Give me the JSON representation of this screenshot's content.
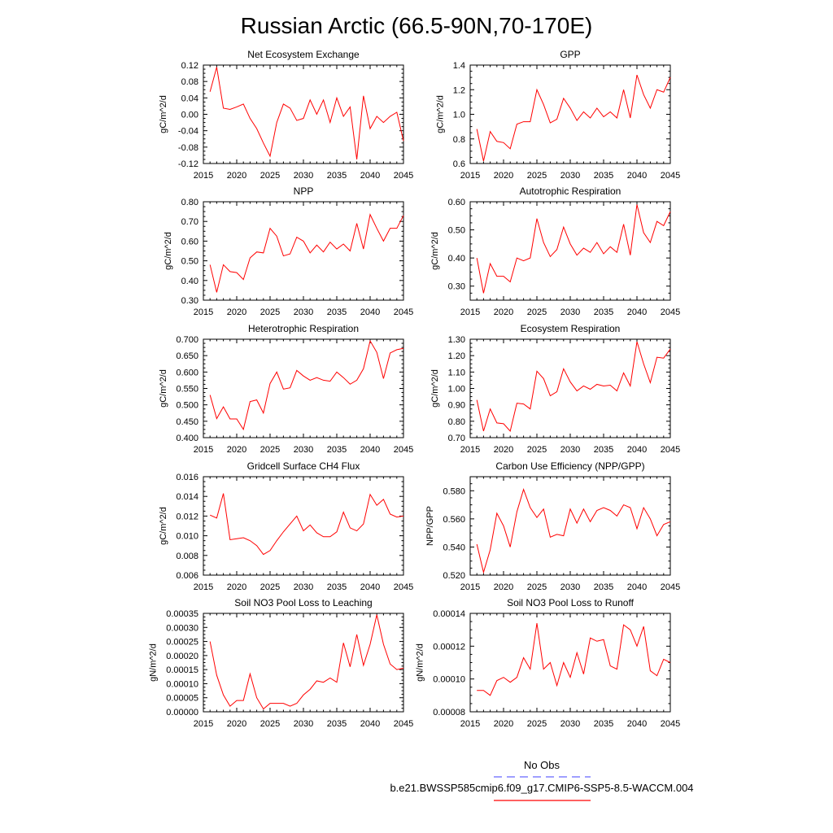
{
  "figure": {
    "title": "Russian Arctic (66.5-90N,70-170E)",
    "legend": {
      "obs_label": "No Obs",
      "obs_color": "#6666ff",
      "model_label": "b.e21.BWSSP585cmip6.f09_g17.CMIP6-SSP5-8.5-WACCM.004",
      "model_color": "#ff0000"
    }
  },
  "chart_data": [
    {
      "type": "line",
      "title": "Net Ecosystem Exchange",
      "ylabel": "gC/m^2/d",
      "xlabel": "",
      "xlim": [
        2015,
        2045
      ],
      "ylim": [
        -0.12,
        0.12
      ],
      "xticks": [
        "2015",
        "2020",
        "2025",
        "2030",
        "2035",
        "2040",
        "2045"
      ],
      "yticks": [
        "-0.12",
        "-0.08",
        "-0.04",
        "0.00",
        "0.04",
        "0.08",
        "0.12"
      ],
      "x": [
        2016,
        2017,
        2018,
        2019,
        2020,
        2021,
        2022,
        2023,
        2024,
        2025,
        2026,
        2027,
        2028,
        2029,
        2030,
        2031,
        2032,
        2033,
        2034,
        2035,
        2036,
        2037,
        2038,
        2039,
        2040,
        2041,
        2042,
        2043,
        2044,
        2045
      ],
      "series": [
        {
          "name": "b.e21.BWSSP585cmip6.f09_g17.CMIP6-SSP5-8.5-WACCM.004",
          "color": "#ff0000",
          "values": [
            0.055,
            0.115,
            0.015,
            0.012,
            0.018,
            0.025,
            -0.01,
            -0.035,
            -0.07,
            -0.102,
            -0.02,
            0.025,
            0.015,
            -0.015,
            -0.01,
            0.035,
            0.0,
            0.035,
            -0.02,
            0.04,
            -0.005,
            0.018,
            -0.11,
            0.045,
            -0.035,
            -0.005,
            -0.02,
            -0.005,
            0.005,
            -0.065
          ]
        }
      ]
    },
    {
      "type": "line",
      "title": "GPP",
      "ylabel": "gC/m^2/d",
      "xlabel": "",
      "xlim": [
        2015,
        2045
      ],
      "ylim": [
        0.6,
        1.4
      ],
      "xticks": [
        "2015",
        "2020",
        "2025",
        "2030",
        "2035",
        "2040",
        "2045"
      ],
      "yticks": [
        "0.6",
        "0.8",
        "1.0",
        "1.2",
        "1.4"
      ],
      "x": [
        2016,
        2017,
        2018,
        2019,
        2020,
        2021,
        2022,
        2023,
        2024,
        2025,
        2026,
        2027,
        2028,
        2029,
        2030,
        2031,
        2032,
        2033,
        2034,
        2035,
        2036,
        2037,
        2038,
        2039,
        2040,
        2041,
        2042,
        2043,
        2044,
        2045
      ],
      "series": [
        {
          "name": "b.e21.BWSSP585cmip6.f09_g17.CMIP6-SSP5-8.5-WACCM.004",
          "color": "#ff0000",
          "values": [
            0.88,
            0.62,
            0.86,
            0.78,
            0.77,
            0.72,
            0.92,
            0.94,
            0.94,
            1.2,
            1.08,
            0.93,
            0.96,
            1.13,
            1.05,
            0.95,
            1.02,
            0.97,
            1.05,
            0.98,
            1.02,
            0.97,
            1.2,
            0.97,
            1.32,
            1.16,
            1.05,
            1.2,
            1.18,
            1.3
          ]
        }
      ]
    },
    {
      "type": "line",
      "title": "NPP",
      "ylabel": "gC/m^2/d",
      "xlabel": "",
      "xlim": [
        2015,
        2045
      ],
      "ylim": [
        0.3,
        0.8
      ],
      "xticks": [
        "2015",
        "2020",
        "2025",
        "2030",
        "2035",
        "2040",
        "2045"
      ],
      "yticks": [
        "0.30",
        "0.40",
        "0.50",
        "0.60",
        "0.70",
        "0.80"
      ],
      "x": [
        2016,
        2017,
        2018,
        2019,
        2020,
        2021,
        2022,
        2023,
        2024,
        2025,
        2026,
        2027,
        2028,
        2029,
        2030,
        2031,
        2032,
        2033,
        2034,
        2035,
        2036,
        2037,
        2038,
        2039,
        2040,
        2041,
        2042,
        2043,
        2044,
        2045
      ],
      "series": [
        {
          "name": "b.e21.BWSSP585cmip6.f09_g17.CMIP6-SSP5-8.5-WACCM.004",
          "color": "#ff0000",
          "values": [
            0.48,
            0.34,
            0.48,
            0.445,
            0.44,
            0.405,
            0.515,
            0.545,
            0.54,
            0.665,
            0.625,
            0.525,
            0.535,
            0.62,
            0.6,
            0.54,
            0.58,
            0.545,
            0.595,
            0.56,
            0.585,
            0.55,
            0.69,
            0.56,
            0.735,
            0.665,
            0.6,
            0.665,
            0.665,
            0.73
          ]
        }
      ]
    },
    {
      "type": "line",
      "title": "Autotrophic Respiration",
      "ylabel": "gC/m^2/d",
      "xlabel": "",
      "xlim": [
        2015,
        2045
      ],
      "ylim": [
        0.25,
        0.6
      ],
      "xticks": [
        "2015",
        "2020",
        "2025",
        "2030",
        "2035",
        "2040",
        "2045"
      ],
      "yticks": [
        "0.30",
        "0.40",
        "0.50",
        "0.60"
      ],
      "x": [
        2016,
        2017,
        2018,
        2019,
        2020,
        2021,
        2022,
        2023,
        2024,
        2025,
        2026,
        2027,
        2028,
        2029,
        2030,
        2031,
        2032,
        2033,
        2034,
        2035,
        2036,
        2037,
        2038,
        2039,
        2040,
        2041,
        2042,
        2043,
        2044,
        2045
      ],
      "series": [
        {
          "name": "b.e21.BWSSP585cmip6.f09_g17.CMIP6-SSP5-8.5-WACCM.004",
          "color": "#ff0000",
          "values": [
            0.4,
            0.275,
            0.38,
            0.335,
            0.335,
            0.315,
            0.4,
            0.39,
            0.4,
            0.54,
            0.455,
            0.405,
            0.43,
            0.51,
            0.45,
            0.41,
            0.435,
            0.42,
            0.455,
            0.415,
            0.44,
            0.42,
            0.52,
            0.41,
            0.59,
            0.49,
            0.455,
            0.53,
            0.515,
            0.565
          ]
        }
      ]
    },
    {
      "type": "line",
      "title": "Heterotrophic Respiration",
      "ylabel": "gC/m^2/d",
      "xlabel": "",
      "xlim": [
        2015,
        2045
      ],
      "ylim": [
        0.4,
        0.7
      ],
      "xticks": [
        "2015",
        "2020",
        "2025",
        "2030",
        "2035",
        "2040",
        "2045"
      ],
      "yticks": [
        "0.400",
        "0.450",
        "0.500",
        "0.550",
        "0.600",
        "0.650",
        "0.700"
      ],
      "x": [
        2016,
        2017,
        2018,
        2019,
        2020,
        2021,
        2022,
        2023,
        2024,
        2025,
        2026,
        2027,
        2028,
        2029,
        2030,
        2031,
        2032,
        2033,
        2034,
        2035,
        2036,
        2037,
        2038,
        2039,
        2040,
        2041,
        2042,
        2043,
        2044,
        2045
      ],
      "series": [
        {
          "name": "b.e21.BWSSP585cmip6.f09_g17.CMIP6-SSP5-8.5-WACCM.004",
          "color": "#ff0000",
          "values": [
            0.53,
            0.458,
            0.494,
            0.457,
            0.457,
            0.425,
            0.51,
            0.515,
            0.475,
            0.565,
            0.6,
            0.548,
            0.552,
            0.605,
            0.588,
            0.575,
            0.583,
            0.575,
            0.572,
            0.6,
            0.583,
            0.563,
            0.575,
            0.61,
            0.695,
            0.66,
            0.58,
            0.658,
            0.668,
            0.672
          ]
        }
      ]
    },
    {
      "type": "line",
      "title": "Ecosystem Respiration",
      "ylabel": "gC/m^2/d",
      "xlabel": "",
      "xlim": [
        2015,
        2045
      ],
      "ylim": [
        0.7,
        1.3
      ],
      "xticks": [
        "2015",
        "2020",
        "2025",
        "2030",
        "2035",
        "2040",
        "2045"
      ],
      "yticks": [
        "0.70",
        "0.80",
        "0.90",
        "1.00",
        "1.10",
        "1.20",
        "1.30"
      ],
      "x": [
        2016,
        2017,
        2018,
        2019,
        2020,
        2021,
        2022,
        2023,
        2024,
        2025,
        2026,
        2027,
        2028,
        2029,
        2030,
        2031,
        2032,
        2033,
        2034,
        2035,
        2036,
        2037,
        2038,
        2039,
        2040,
        2041,
        2042,
        2043,
        2044,
        2045
      ],
      "series": [
        {
          "name": "b.e21.BWSSP585cmip6.f09_g17.CMIP6-SSP5-8.5-WACCM.004",
          "color": "#ff0000",
          "values": [
            0.93,
            0.74,
            0.875,
            0.79,
            0.785,
            0.74,
            0.91,
            0.905,
            0.875,
            1.105,
            1.06,
            0.955,
            0.98,
            1.12,
            1.04,
            0.985,
            1.015,
            0.995,
            1.025,
            1.015,
            1.02,
            0.985,
            1.095,
            1.015,
            1.285,
            1.15,
            1.035,
            1.19,
            1.185,
            1.24
          ]
        }
      ]
    },
    {
      "type": "line",
      "title": "Gridcell Surface CH4 Flux",
      "ylabel": "gC/m^2/d",
      "xlabel": "",
      "xlim": [
        2015,
        2045
      ],
      "ylim": [
        0.006,
        0.016
      ],
      "xticks": [
        "2015",
        "2020",
        "2025",
        "2030",
        "2035",
        "2040",
        "2045"
      ],
      "yticks": [
        "0.006",
        "0.008",
        "0.010",
        "0.012",
        "0.014",
        "0.016"
      ],
      "x": [
        2016,
        2017,
        2018,
        2019,
        2020,
        2021,
        2022,
        2023,
        2024,
        2025,
        2026,
        2027,
        2028,
        2029,
        2030,
        2031,
        2032,
        2033,
        2034,
        2035,
        2036,
        2037,
        2038,
        2039,
        2040,
        2041,
        2042,
        2043,
        2044,
        2045
      ],
      "series": [
        {
          "name": "b.e21.BWSSP585cmip6.f09_g17.CMIP6-SSP5-8.5-WACCM.004",
          "color": "#ff0000",
          "values": [
            0.0121,
            0.0118,
            0.0143,
            0.0096,
            0.0097,
            0.0098,
            0.0095,
            0.009,
            0.0081,
            0.0085,
            0.0095,
            0.0104,
            0.0112,
            0.012,
            0.0105,
            0.0111,
            0.0103,
            0.0099,
            0.0099,
            0.0104,
            0.0124,
            0.0108,
            0.0105,
            0.0112,
            0.0142,
            0.0131,
            0.0137,
            0.0122,
            0.0119,
            0.012
          ]
        }
      ]
    },
    {
      "type": "line",
      "title": "Carbon Use Efficiency (NPP/GPP)",
      "ylabel": "NPP/GPP",
      "xlabel": "",
      "xlim": [
        2015,
        2045
      ],
      "ylim": [
        0.52,
        0.59
      ],
      "xticks": [
        "2015",
        "2020",
        "2025",
        "2030",
        "2035",
        "2040",
        "2045"
      ],
      "yticks": [
        "0.520",
        "0.540",
        "0.560",
        "0.580"
      ],
      "x": [
        2016,
        2017,
        2018,
        2019,
        2020,
        2021,
        2022,
        2023,
        2024,
        2025,
        2026,
        2027,
        2028,
        2029,
        2030,
        2031,
        2032,
        2033,
        2034,
        2035,
        2036,
        2037,
        2038,
        2039,
        2040,
        2041,
        2042,
        2043,
        2044,
        2045
      ],
      "series": [
        {
          "name": "b.e21.BWSSP585cmip6.f09_g17.CMIP6-SSP5-8.5-WACCM.004",
          "color": "#ff0000",
          "values": [
            0.542,
            0.522,
            0.538,
            0.564,
            0.555,
            0.54,
            0.565,
            0.581,
            0.568,
            0.561,
            0.567,
            0.547,
            0.549,
            0.548,
            0.567,
            0.557,
            0.567,
            0.558,
            0.566,
            0.568,
            0.566,
            0.562,
            0.57,
            0.568,
            0.553,
            0.568,
            0.56,
            0.548,
            0.556,
            0.558
          ]
        }
      ]
    },
    {
      "type": "line",
      "title": "Soil NO3 Pool Loss to Leaching",
      "ylabel": "gN/m^2/d",
      "xlabel": "",
      "xlim": [
        2015,
        2045
      ],
      "ylim": [
        0.0,
        0.00035
      ],
      "xticks": [
        "2015",
        "2020",
        "2025",
        "2030",
        "2035",
        "2040",
        "2045"
      ],
      "yticks": [
        "0.00000",
        "0.00005",
        "0.00010",
        "0.00015",
        "0.00020",
        "0.00025",
        "0.00030",
        "0.00035"
      ],
      "x": [
        2016,
        2017,
        2018,
        2019,
        2020,
        2021,
        2022,
        2023,
        2024,
        2025,
        2026,
        2027,
        2028,
        2029,
        2030,
        2031,
        2032,
        2033,
        2034,
        2035,
        2036,
        2037,
        2038,
        2039,
        2040,
        2041,
        2042,
        2043,
        2044,
        2045
      ],
      "series": [
        {
          "name": "b.e21.BWSSP585cmip6.f09_g17.CMIP6-SSP5-8.5-WACCM.004",
          "color": "#ff0000",
          "values": [
            0.00025,
            0.00013,
            6e-05,
            2e-05,
            4e-05,
            4e-05,
            0.000135,
            5e-05,
            1e-05,
            3e-05,
            3e-05,
            3e-05,
            2e-05,
            3e-05,
            6e-05,
            8e-05,
            0.00011,
            0.000105,
            0.00012,
            0.000105,
            0.000245,
            0.00016,
            0.000275,
            0.000165,
            0.00024,
            0.000345,
            0.00024,
            0.00017,
            0.00015,
            0.000155
          ]
        }
      ]
    },
    {
      "type": "line",
      "title": "Soil NO3 Pool Loss to Runoff",
      "ylabel": "gN/m^2/d",
      "xlabel": "",
      "xlim": [
        2015,
        2045
      ],
      "ylim": [
        8e-05,
        0.00014
      ],
      "xticks": [
        "2015",
        "2020",
        "2025",
        "2030",
        "2035",
        "2040",
        "2045"
      ],
      "yticks": [
        "0.00008",
        "0.00010",
        "0.00012",
        "0.00014"
      ],
      "x": [
        2016,
        2017,
        2018,
        2019,
        2020,
        2021,
        2022,
        2023,
        2024,
        2025,
        2026,
        2027,
        2028,
        2029,
        2030,
        2031,
        2032,
        2033,
        2034,
        2035,
        2036,
        2037,
        2038,
        2039,
        2040,
        2041,
        2042,
        2043,
        2044,
        2045
      ],
      "series": [
        {
          "name": "b.e21.BWSSP585cmip6.f09_g17.CMIP6-SSP5-8.5-WACCM.004",
          "color": "#ff0000",
          "values": [
            9.3e-05,
            9.3e-05,
            9e-05,
            9.9e-05,
            0.000101,
            9.8e-05,
            0.000101,
            0.000113,
            0.000106,
            0.000134,
            0.000106,
            0.00011,
            9.6e-05,
            0.00011,
            0.000101,
            0.000116,
            0.000103,
            0.000125,
            0.000123,
            0.000124,
            0.000108,
            0.000106,
            0.000133,
            0.00013,
            0.00012,
            0.000132,
            0.000105,
            0.000102,
            0.000112,
            0.00011
          ]
        }
      ]
    }
  ]
}
